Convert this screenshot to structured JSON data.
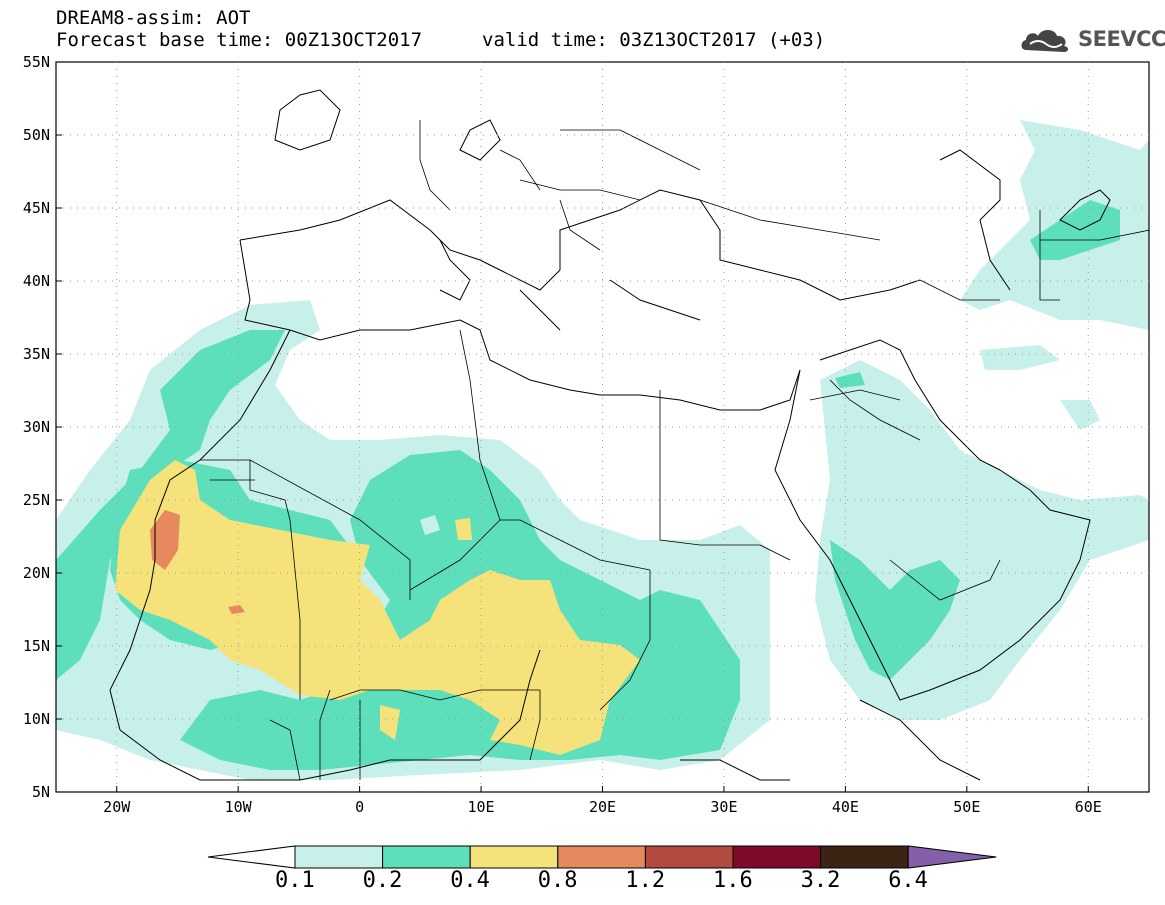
{
  "header": {
    "line1": "DREAM8-assim: AOT",
    "line2": "Forecast base time: 00Z13OCT2017",
    "valid": "valid time: 03Z13OCT2017 (+03)"
  },
  "logo": {
    "icon": "cloud-icon",
    "text": "SEEVCCC"
  },
  "map": {
    "lon_range": [
      -25,
      65
    ],
    "lat_range": [
      5,
      55
    ],
    "lat_labels": [
      "55N",
      "50N",
      "45N",
      "40N",
      "35N",
      "30N",
      "25N",
      "20N",
      "15N",
      "10N",
      "5N"
    ],
    "lon_labels": [
      "20W",
      "10W",
      "0",
      "10E",
      "20E",
      "30E",
      "40E",
      "50E",
      "60E"
    ]
  },
  "colorbar": {
    "levels": [
      "0.1",
      "0.2",
      "0.4",
      "0.8",
      "1.2",
      "1.6",
      "3.2",
      "6.4"
    ],
    "colors": [
      "#c8f0ea",
      "#5ddfbb",
      "#f5e27a",
      "#e6895f",
      "#b24a3f",
      "#7e0a2a",
      "#3b2414",
      "#8460a8"
    ]
  },
  "colors": {
    "level1": "#c8f0ea",
    "level2": "#5ddfbb",
    "level3": "#f5e27a",
    "level4": "#e6895f"
  }
}
